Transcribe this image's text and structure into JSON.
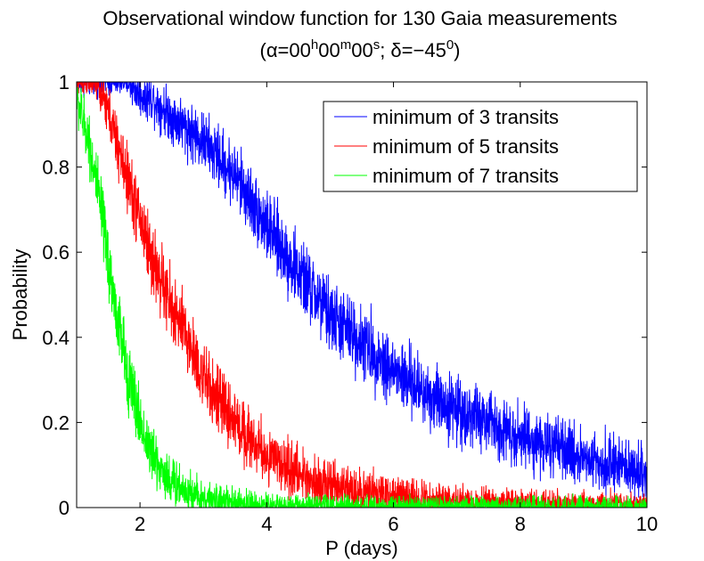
{
  "chart_data": {
    "type": "line",
    "title": "Observational window function for 130 Gaia measurements",
    "subtitle": {
      "open": "(",
      "alpha": "α=00",
      "h": "h",
      "mins": "00",
      "m": "m",
      "secs": "00",
      "s": "s",
      "delta": "; δ=−45",
      "deg": "0",
      "close": ")"
    },
    "xlabel": "P (days)",
    "ylabel": "Probability",
    "xlim": [
      1,
      10
    ],
    "ylim": [
      0,
      1
    ],
    "xticks": [
      2,
      4,
      6,
      8,
      10
    ],
    "yticks": [
      0,
      0.2,
      0.4,
      0.6,
      0.8,
      1
    ],
    "ytick_labels": [
      "0",
      "0.2",
      "0.4",
      "0.6",
      "0.8",
      "1"
    ],
    "grid": false,
    "legend_position": "top-right",
    "series": [
      {
        "name": "minimum of 3 transits",
        "color": "#0000ff",
        "noise": 0.03,
        "points": [
          [
            1.0,
            1.0
          ],
          [
            1.5,
            1.0
          ],
          [
            1.8,
            1.0
          ],
          [
            2.0,
            0.97
          ],
          [
            2.2,
            0.96
          ],
          [
            2.5,
            0.92
          ],
          [
            3.0,
            0.86
          ],
          [
            3.5,
            0.78
          ],
          [
            4.0,
            0.66
          ],
          [
            4.5,
            0.55
          ],
          [
            5.0,
            0.45
          ],
          [
            5.5,
            0.39
          ],
          [
            6.0,
            0.32
          ],
          [
            6.5,
            0.27
          ],
          [
            7.0,
            0.23
          ],
          [
            7.5,
            0.2
          ],
          [
            8.0,
            0.17
          ],
          [
            8.5,
            0.14
          ],
          [
            9.0,
            0.12
          ],
          [
            9.5,
            0.1
          ],
          [
            10.0,
            0.08
          ]
        ]
      },
      {
        "name": "minimum of 5 transits",
        "color": "#ff0000",
        "noise": 0.03,
        "points": [
          [
            1.0,
            1.0
          ],
          [
            1.3,
            1.0
          ],
          [
            1.5,
            0.93
          ],
          [
            1.7,
            0.82
          ],
          [
            2.0,
            0.68
          ],
          [
            2.2,
            0.58
          ],
          [
            2.5,
            0.47
          ],
          [
            2.8,
            0.38
          ],
          [
            3.0,
            0.3
          ],
          [
            3.5,
            0.2
          ],
          [
            4.0,
            0.12
          ],
          [
            4.5,
            0.08
          ],
          [
            5.0,
            0.05
          ],
          [
            5.5,
            0.035
          ],
          [
            6.0,
            0.025
          ],
          [
            7.0,
            0.015
          ],
          [
            8.0,
            0.01
          ],
          [
            10.0,
            0.005
          ]
        ]
      },
      {
        "name": "minimum of 7 transits",
        "color": "#00ff00",
        "noise": 0.03,
        "points": [
          [
            1.0,
            0.96
          ],
          [
            1.2,
            0.86
          ],
          [
            1.4,
            0.68
          ],
          [
            1.6,
            0.48
          ],
          [
            1.8,
            0.32
          ],
          [
            2.0,
            0.2
          ],
          [
            2.2,
            0.12
          ],
          [
            2.5,
            0.06
          ],
          [
            3.0,
            0.02
          ],
          [
            3.5,
            0.01
          ],
          [
            4.0,
            0.005
          ],
          [
            5.0,
            0.002
          ],
          [
            10.0,
            0.0
          ]
        ]
      }
    ]
  }
}
